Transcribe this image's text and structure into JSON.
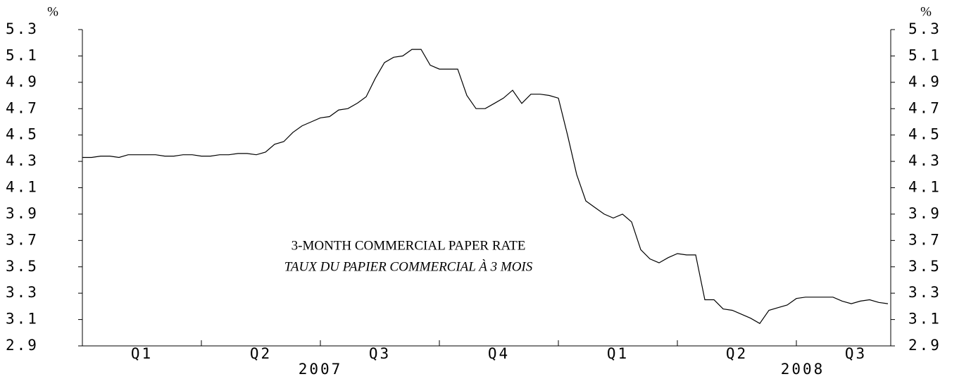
{
  "chart_data": {
    "type": "line",
    "title": "3-MONTH COMMERCIAL PAPER RATE",
    "subtitle": "TAUX DU PAPIER COMMERCIAL À 3 MOIS",
    "y_unit": "%",
    "categories": [
      null,
      null,
      null,
      null,
      null,
      null,
      "Q1",
      null,
      null,
      null,
      null,
      null,
      null,
      null,
      null,
      null,
      null,
      null,
      null,
      "Q2",
      null,
      null,
      null,
      null,
      null,
      null,
      null,
      null,
      null,
      null,
      null,
      null,
      "Q3",
      null,
      null,
      null,
      null,
      null,
      null,
      null,
      null,
      null,
      null,
      null,
      null,
      "Q4",
      null,
      null,
      null,
      null,
      null,
      null,
      null,
      null,
      null,
      null,
      null,
      null,
      "Q1",
      null,
      null,
      null,
      null,
      null,
      null,
      null,
      null,
      null,
      null,
      null,
      null,
      "Q2",
      null,
      null,
      null,
      null,
      null,
      null,
      null,
      null,
      null,
      null,
      null,
      null,
      "Q3",
      null,
      null,
      null,
      null
    ],
    "year_labels": [
      "2007",
      "2008"
    ],
    "series": [
      {
        "color": "#000000",
        "values": [
          4.33,
          4.33,
          4.34,
          4.34,
          4.33,
          4.35,
          4.35,
          4.35,
          4.35,
          4.34,
          4.34,
          4.35,
          4.35,
          4.34,
          4.34,
          4.35,
          4.35,
          4.36,
          4.36,
          4.35,
          4.37,
          4.43,
          4.45,
          4.52,
          4.57,
          4.6,
          4.63,
          4.64,
          4.69,
          4.7,
          4.74,
          4.79,
          4.93,
          5.05,
          5.09,
          5.1,
          5.15,
          5.15,
          5.03,
          5.0,
          5.0,
          5.0,
          4.8,
          4.7,
          4.7,
          4.74,
          4.78,
          4.84,
          4.74,
          4.81,
          4.81,
          4.8,
          4.78,
          4.5,
          4.2,
          4.0,
          3.95,
          3.9,
          3.87,
          3.9,
          3.84,
          3.63,
          3.56,
          3.53,
          3.57,
          3.6,
          3.59,
          3.59,
          3.25,
          3.25,
          3.18,
          3.17,
          3.14,
          3.11,
          3.07,
          3.17,
          3.19,
          3.21,
          3.26,
          3.27,
          3.27,
          3.27,
          3.27,
          3.24,
          3.22,
          3.24,
          3.25,
          3.23,
          3.22
        ]
      }
    ],
    "ylim": [
      2.9,
      5.3
    ],
    "yticks": [
      2.9,
      3.1,
      3.3,
      3.5,
      3.7,
      3.9,
      4.1,
      4.3,
      4.5,
      4.7,
      4.9,
      5.1,
      5.3
    ]
  }
}
